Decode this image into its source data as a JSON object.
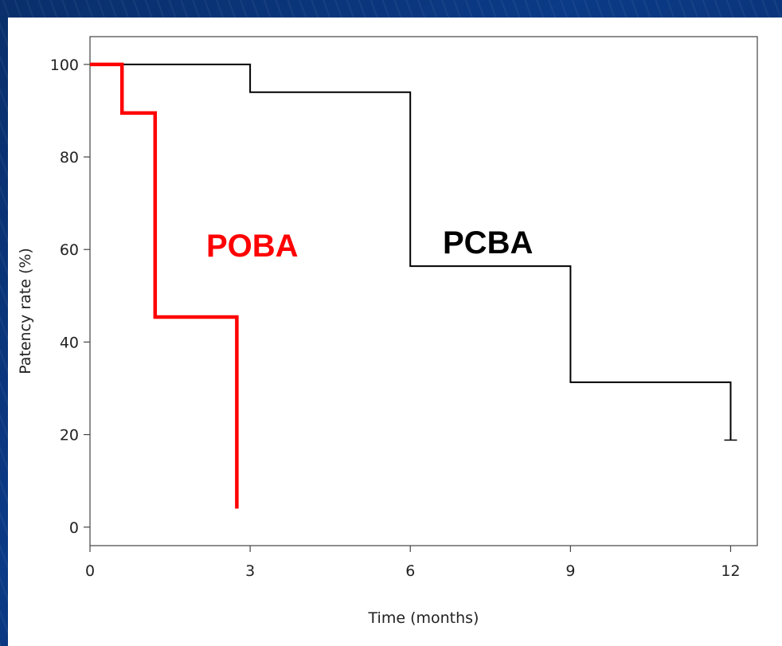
{
  "chart_data": {
    "type": "line",
    "step": true,
    "title": "",
    "xlabel": "Time (months)",
    "ylabel": "Patency rate (%)",
    "xlim": [
      0,
      12.5
    ],
    "ylim": [
      -4,
      106
    ],
    "x_ticks": [
      0,
      3,
      6,
      9,
      12
    ],
    "y_ticks": [
      0,
      20,
      40,
      60,
      80,
      100
    ],
    "grid": false,
    "legend": "inline labels",
    "series": [
      {
        "name": "PCBA",
        "color": "#000000",
        "x": [
          0,
          3,
          3,
          6,
          6,
          9,
          9,
          12,
          12
        ],
        "y": [
          100,
          100,
          94,
          94,
          56.4,
          56.4,
          31.3,
          31.3,
          18.8
        ],
        "censor": [
          {
            "x": 12,
            "y": 18.8
          }
        ]
      },
      {
        "name": "POBA",
        "color": "#ff0000",
        "x": [
          0,
          0.6,
          0.6,
          1.22,
          1.22,
          2.75,
          2.75
        ],
        "y": [
          100,
          100,
          89.5,
          89.5,
          45.4,
          45.4,
          4
        ]
      }
    ]
  }
}
